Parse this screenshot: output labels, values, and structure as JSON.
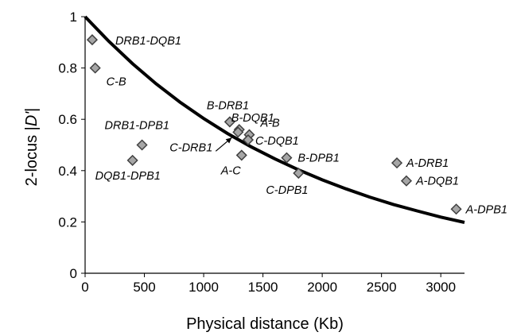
{
  "chart_data": {
    "type": "scatter",
    "xlabel": "Physical distance (Kb)",
    "ylabel_prefix": "2-locus |",
    "ylabel_italic": "D'",
    "ylabel_suffix": "|",
    "xlim": [
      0,
      3200
    ],
    "ylim": [
      0,
      1
    ],
    "x_ticks": [
      0,
      500,
      1000,
      1500,
      2000,
      2500,
      3000
    ],
    "y_ticks": [
      0,
      0.2,
      0.4,
      0.6,
      0.8,
      1
    ],
    "y_tick_labels": [
      "0",
      "0.2",
      "0.4",
      "0.6",
      "0.8",
      "1"
    ],
    "grid": false,
    "marker": {
      "shape": "diamond",
      "fill": "#a6a6a6",
      "stroke": "#404040"
    },
    "curve_color": "#000000",
    "points": [
      {
        "label": "DRB1-DQB1",
        "x": 60,
        "y": 0.91
      },
      {
        "label": "C-B",
        "x": 85,
        "y": 0.8
      },
      {
        "label": "DRB1-DPB1",
        "x": 480,
        "y": 0.5
      },
      {
        "label": "DQB1-DPB1",
        "x": 400,
        "y": 0.44
      },
      {
        "label": "B-DRB1",
        "x": 1220,
        "y": 0.59
      },
      {
        "label": "B-DQB1",
        "x": 1300,
        "y": 0.56
      },
      {
        "label": "A-B",
        "x": 1385,
        "y": 0.54
      },
      {
        "label": "C-DQB1",
        "x": 1375,
        "y": 0.52
      },
      {
        "label": "C-DRB1",
        "x": 1290,
        "y": 0.55
      },
      {
        "label": "A-C",
        "x": 1320,
        "y": 0.46
      },
      {
        "label": "B-DPB1",
        "x": 1700,
        "y": 0.45
      },
      {
        "label": "C-DPB1",
        "x": 1800,
        "y": 0.39
      },
      {
        "label": "A-DRB1",
        "x": 2630,
        "y": 0.43
      },
      {
        "label": "A-DQB1",
        "x": 2710,
        "y": 0.36
      },
      {
        "label": "A-DPB1",
        "x": 3130,
        "y": 0.25
      }
    ],
    "fit_curve": {
      "x": [
        0,
        200,
        400,
        600,
        800,
        1000,
        1200,
        1400,
        1600,
        1800,
        2000,
        2200,
        2400,
        2600,
        2800,
        3000,
        3200
      ],
      "y": [
        1.0,
        0.904,
        0.817,
        0.738,
        0.667,
        0.603,
        0.545,
        0.493,
        0.446,
        0.403,
        0.364,
        0.329,
        0.297,
        0.268,
        0.243,
        0.219,
        0.198
      ]
    }
  }
}
